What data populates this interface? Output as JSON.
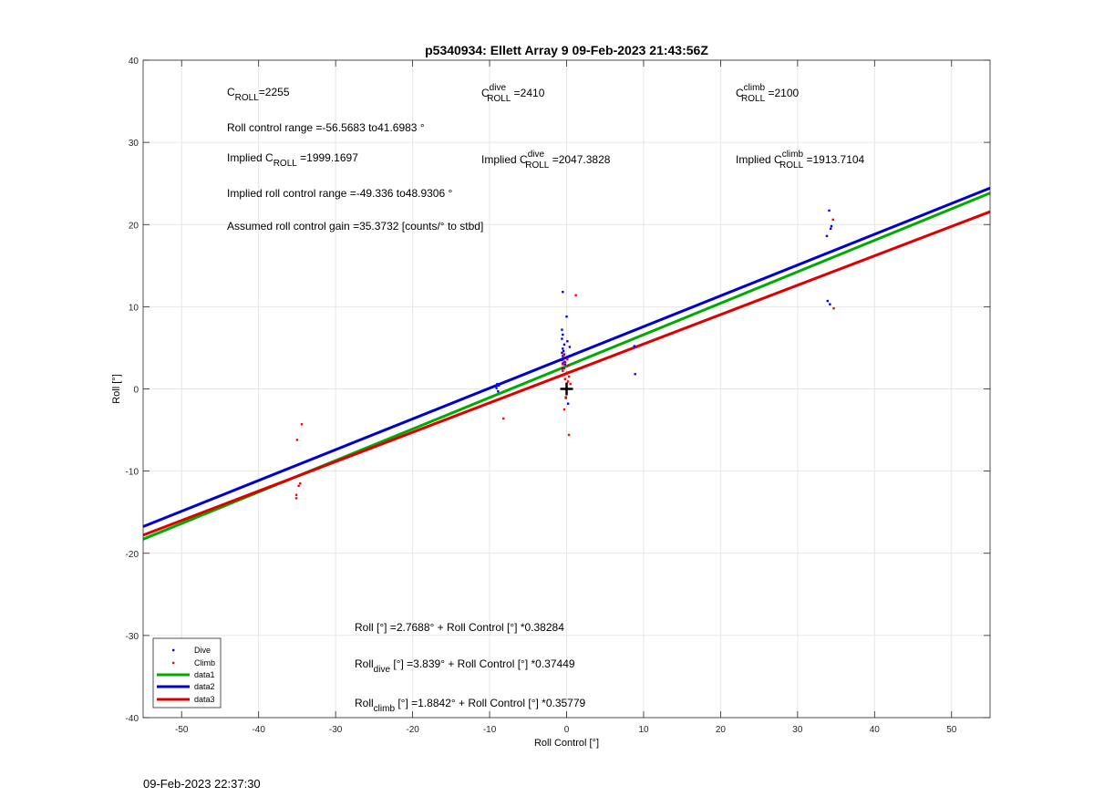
{
  "chart_data": {
    "type": "scatter",
    "title": "p5340934: Ellett Array 9 09-Feb-2023 21:43:56Z",
    "xlabel": "Roll Control [°]",
    "ylabel": "Roll [°]",
    "xlim": [
      -55,
      55
    ],
    "ylim": [
      -40,
      40
    ],
    "xticks": [
      -50,
      -40,
      -30,
      -20,
      -10,
      0,
      10,
      20,
      30,
      40,
      50
    ],
    "yticks": [
      -40,
      -30,
      -20,
      -10,
      0,
      10,
      20,
      30,
      40
    ],
    "grid": true,
    "legend_position": "bottom-left",
    "series": [
      {
        "name": "Dive",
        "kind": "points",
        "color": "#0000ff",
        "points": [
          [
            -0.5,
            11.8
          ],
          [
            0,
            8.8
          ],
          [
            -0.6,
            7.2
          ],
          [
            -0.5,
            6.6
          ],
          [
            -0.6,
            6.1
          ],
          [
            0.1,
            5.8
          ],
          [
            -0.3,
            5.4
          ],
          [
            0.4,
            5.1
          ],
          [
            -0.5,
            4.9
          ],
          [
            -0.4,
            4.6
          ],
          [
            -0.6,
            4.4
          ],
          [
            -0.3,
            4.2
          ],
          [
            -0.5,
            4.0
          ],
          [
            0.2,
            3.9
          ],
          [
            -0.4,
            3.7
          ],
          [
            -0.6,
            3.5
          ],
          [
            -0.3,
            3.3
          ],
          [
            -0.5,
            3.1
          ],
          [
            -0.2,
            3.0
          ],
          [
            0.2,
            2.8
          ],
          [
            -0.5,
            2.5
          ],
          [
            -0.1,
            -1.1
          ],
          [
            0.2,
            -1.8
          ],
          [
            -9,
            0.6
          ],
          [
            -8.8,
            0.4
          ],
          [
            -9.1,
            0.1
          ],
          [
            -8.9,
            -0.3
          ],
          [
            8.8,
            5.2
          ],
          [
            8.9,
            1.8
          ],
          [
            34.1,
            21.7
          ],
          [
            34.4,
            19.8
          ],
          [
            34.3,
            19.5
          ],
          [
            33.8,
            18.6
          ],
          [
            33.9,
            10.7
          ],
          [
            34.2,
            10.3
          ]
        ]
      },
      {
        "name": "Climb",
        "kind": "points",
        "color": "#ff0000",
        "points": [
          [
            1.2,
            11.4
          ],
          [
            -0.4,
            4.1
          ],
          [
            0.1,
            3.6
          ],
          [
            -0.2,
            3.3
          ],
          [
            -0.5,
            3.0
          ],
          [
            0.2,
            2.8
          ],
          [
            -0.3,
            2.5
          ],
          [
            -0.5,
            2.2
          ],
          [
            0.1,
            2.0
          ],
          [
            -0.3,
            1.7
          ],
          [
            0.3,
            1.5
          ],
          [
            -0.2,
            1.2
          ],
          [
            0.2,
            0.9
          ],
          [
            0.5,
            0.6
          ],
          [
            -0.1,
            -1.0
          ],
          [
            -0.3,
            -2.5
          ],
          [
            0.3,
            -5.6
          ],
          [
            -8.2,
            -3.6
          ],
          [
            -34.4,
            -4.3
          ],
          [
            -35,
            -6.2
          ],
          [
            -34.6,
            -11.5
          ],
          [
            -34.8,
            -11.8
          ],
          [
            -35.1,
            -12.9
          ],
          [
            -35.1,
            -13.3
          ],
          [
            34.6,
            20.6
          ],
          [
            34.7,
            9.8
          ]
        ]
      },
      {
        "name": "data1",
        "kind": "line",
        "color": "#00aa00",
        "intercept": 2.7688,
        "slope": 0.38284
      },
      {
        "name": "data2",
        "kind": "line",
        "color": "#0000cc",
        "intercept": 3.839,
        "slope": 0.37449
      },
      {
        "name": "data3",
        "kind": "line",
        "color": "#dd0000",
        "intercept": 1.8842,
        "slope": 0.35779
      }
    ],
    "origin_marker": [
      0,
      0
    ]
  },
  "annotations": {
    "c_roll": {
      "pre": "C",
      "sub": "ROLL",
      "post": "=2255"
    },
    "c_roll_dive": {
      "pre": "C",
      "sup": "dive",
      "sub": "ROLL",
      "post": " =2410"
    },
    "c_roll_climb": {
      "pre": "C",
      "sup": "climb",
      "sub": "ROLL",
      "post": " =2100"
    },
    "roll_range": "Roll control range =-56.5683 to41.6983 °",
    "implied_c_roll": {
      "pre": "Implied C",
      "sub": "ROLL",
      "post": " =1999.1697"
    },
    "implied_c_roll_dive": {
      "pre": "Implied C",
      "sup": "dive",
      "sub": "ROLL",
      "post": " =2047.3828"
    },
    "implied_c_roll_climb": {
      "pre": "Implied C",
      "sup": "climb",
      "sub": "ROLL",
      "post": " =1913.7104"
    },
    "implied_range": "Implied roll control range =-49.336 to48.9306 °",
    "gain": "Assumed roll control gain =35.3732 [counts/° to stbd]",
    "fit_all": {
      "pre": "Roll [°] =2.7688° + Roll Control [°] *0.38284"
    },
    "fit_dive": {
      "pre": "Roll",
      "sub": "dive",
      "post": " [°] =3.839° + Roll Control [°] *0.37449"
    },
    "fit_climb": {
      "pre": "Roll",
      "sub": "climb",
      "post": " [°] =1.8842° + Roll Control [°] *0.35779"
    }
  },
  "footer_timestamp": "09-Feb-2023 22:37:30"
}
